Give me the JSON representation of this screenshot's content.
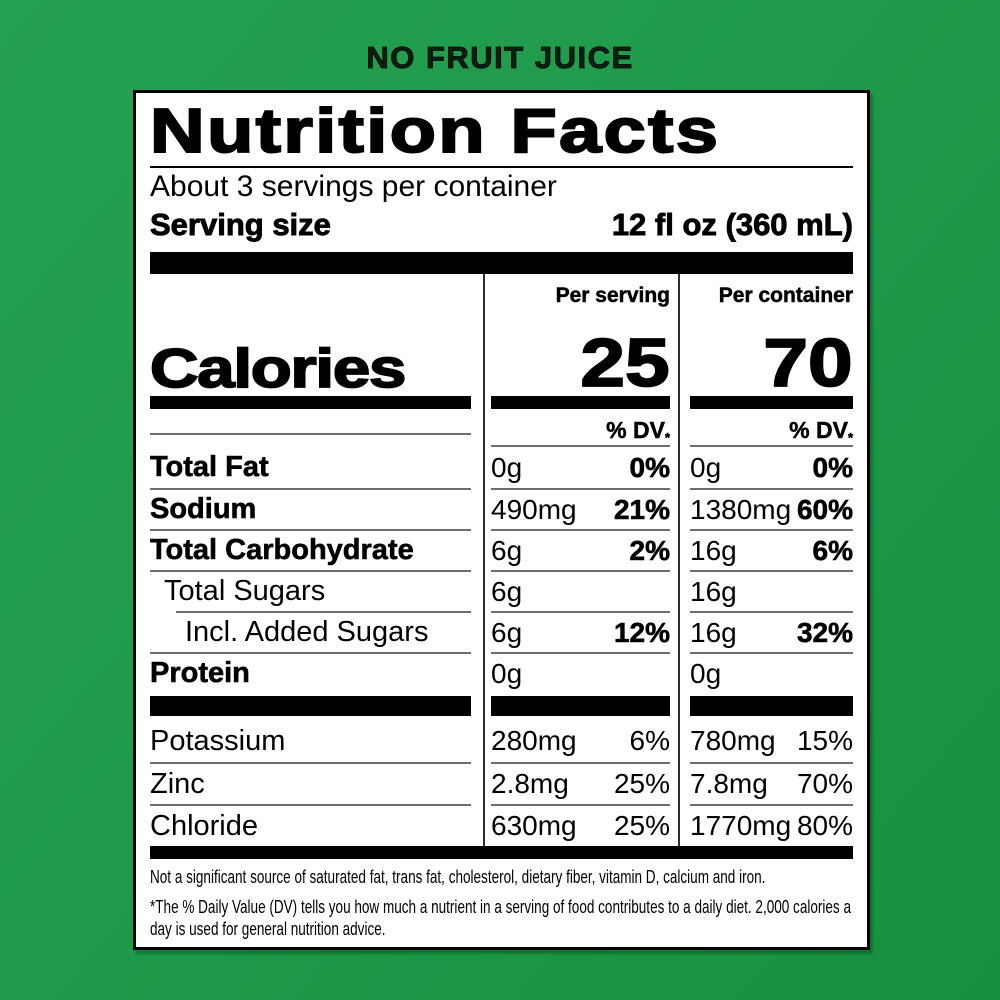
{
  "banner": {
    "title": "NO FRUIT JUICE"
  },
  "label": {
    "title": "Nutrition Facts",
    "servings_per_container": "About 3 servings per container",
    "serving_size": {
      "label": "Serving size",
      "value": "12 fl oz (360 mL)"
    },
    "column_headers": {
      "per_serving": "Per serving",
      "per_container": "Per container"
    },
    "calories": {
      "label": "Calories",
      "per_serving": "25",
      "per_container": "70"
    },
    "dv_header": {
      "text": "% DV",
      "star": "*"
    },
    "rows": [
      {
        "name": "Total Fat",
        "serving_amount": "0g",
        "serving_dv": "0%",
        "container_amount": "0g",
        "container_dv": "0%"
      },
      {
        "name": "Sodium",
        "serving_amount": "490mg",
        "serving_dv": "21%",
        "container_amount": "1380mg",
        "container_dv": "60%"
      },
      {
        "name": "Total Carbohydrate",
        "serving_amount": "6g",
        "serving_dv": "2%",
        "container_amount": "16g",
        "container_dv": "6%"
      },
      {
        "name": "Total Sugars",
        "serving_amount": "6g",
        "serving_dv": "",
        "container_amount": "16g",
        "container_dv": ""
      },
      {
        "name": "Incl. Added Sugars",
        "serving_amount": "6g",
        "serving_dv": "12%",
        "container_amount": "16g",
        "container_dv": "32%"
      },
      {
        "name": "Protein",
        "serving_amount": "0g",
        "serving_dv": "",
        "container_amount": "0g",
        "container_dv": ""
      },
      {
        "name": "Potassium",
        "serving_amount": "280mg",
        "serving_dv": "6%",
        "container_amount": "780mg",
        "container_dv": "15%"
      },
      {
        "name": "Zinc",
        "serving_amount": "2.8mg",
        "serving_dv": "25%",
        "container_amount": "7.8mg",
        "container_dv": "70%"
      },
      {
        "name": "Chloride",
        "serving_amount": "630mg",
        "serving_dv": "25%",
        "container_amount": "1770mg",
        "container_dv": "80%"
      }
    ],
    "footnotes": [
      "Not a significant source of saturated fat, trans fat, cholesterol, dietary fiber, vitamin D, calcium and iron.",
      "*The % Daily Value (DV) tells you how much a nutrient in a serving of food contributes to a daily diet. 2,000 calories a day is used for general nutrition advice."
    ]
  },
  "colors": {
    "background_green": "#1E9A4A",
    "label_background": "#FFFFFF",
    "text": "#000000",
    "hairline_gray": "#6E6E6E"
  }
}
